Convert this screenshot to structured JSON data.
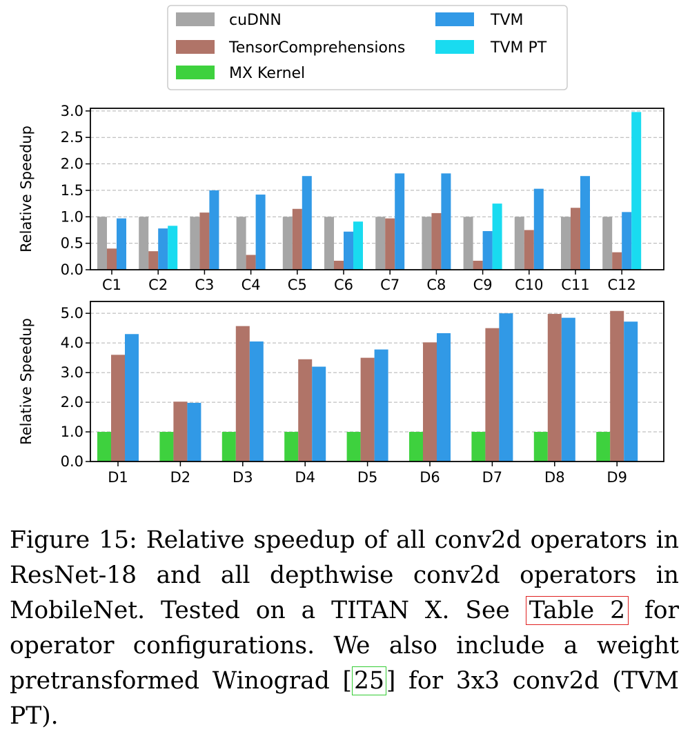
{
  "chart_data": [
    {
      "type": "bar",
      "title": "",
      "xlabel": "",
      "ylabel": "Relative Speedup",
      "ylim": [
        0,
        3.05
      ],
      "yticks": [
        "0.0",
        "0.5",
        "1.0",
        "1.5",
        "2.0",
        "2.5",
        "3.0"
      ],
      "ytick_values": [
        0,
        0.5,
        1.0,
        1.5,
        2.0,
        2.5,
        3.0
      ],
      "grid": "horizontal-dashed",
      "categories": [
        "C1",
        "C2",
        "C3",
        "C4",
        "C5",
        "C6",
        "C7",
        "C8",
        "C9",
        "C10",
        "C11",
        "C12"
      ],
      "series": [
        {
          "name": "cuDNN",
          "color": "#a6a6a6",
          "values": [
            1.0,
            1.0,
            1.0,
            1.0,
            1.0,
            1.0,
            1.0,
            1.0,
            1.0,
            1.0,
            1.0,
            1.0
          ]
        },
        {
          "name": "TensorComprehensions",
          "color": "#b07468",
          "values": [
            0.4,
            0.35,
            1.08,
            0.28,
            1.15,
            0.17,
            0.97,
            1.07,
            0.17,
            0.75,
            1.17,
            0.33
          ]
        },
        {
          "name": "TVM",
          "color": "#3199e6",
          "values": [
            0.97,
            0.78,
            1.5,
            1.42,
            1.77,
            0.72,
            1.82,
            1.82,
            0.73,
            1.53,
            1.77,
            1.09
          ]
        },
        {
          "name": "TVM PT",
          "color": "#19dbf0",
          "values": [
            null,
            0.83,
            null,
            null,
            null,
            0.91,
            null,
            null,
            1.25,
            null,
            null,
            2.98
          ]
        }
      ]
    },
    {
      "type": "bar",
      "title": "",
      "xlabel": "",
      "ylabel": "Relative Speedup",
      "ylim": [
        0,
        5.4
      ],
      "yticks": [
        "0.0",
        "1.0",
        "2.0",
        "3.0",
        "4.0",
        "5.0"
      ],
      "ytick_values": [
        0,
        1.0,
        2.0,
        3.0,
        4.0,
        5.0
      ],
      "grid": "horizontal-dashed",
      "categories": [
        "D1",
        "D2",
        "D3",
        "D4",
        "D5",
        "D6",
        "D7",
        "D8",
        "D9"
      ],
      "series": [
        {
          "name": "MX Kernel",
          "color": "#3ed13e",
          "values": [
            1.0,
            1.0,
            1.0,
            1.0,
            1.0,
            1.0,
            1.0,
            1.0,
            1.0
          ]
        },
        {
          "name": "TensorComprehensions",
          "color": "#b07468",
          "values": [
            3.6,
            2.02,
            4.57,
            3.45,
            3.5,
            4.02,
            4.5,
            4.98,
            5.08
          ]
        },
        {
          "name": "TVM",
          "color": "#3199e6",
          "values": [
            4.3,
            1.98,
            4.05,
            3.2,
            3.78,
            4.33,
            5.0,
            4.85,
            4.72
          ]
        }
      ]
    }
  ],
  "legend": {
    "placement": "top-center",
    "items": [
      {
        "label": "cuDNN",
        "color": "#a6a6a6"
      },
      {
        "label": "TensorComprehensions",
        "color": "#b07468"
      },
      {
        "label": "MX Kernel",
        "color": "#3ed13e"
      },
      {
        "label": "TVM",
        "color": "#3199e6"
      },
      {
        "label": "TVM PT",
        "color": "#19dbf0"
      }
    ]
  },
  "caption": {
    "part1": "Figure 15: Relative speedup of all conv2d operators in ResNet-18 and all depthwise conv2d operators in MobileNet.  Tested on a TITAN X. See ",
    "table_ref": "Table 2",
    "part2": " for operator configurations.  We also include a weight pretransformed Winograd ",
    "bracket_open": "[",
    "cite_ref": "25",
    "bracket_close": "]",
    "part3": " for 3x3 conv2d (TVM PT)."
  }
}
